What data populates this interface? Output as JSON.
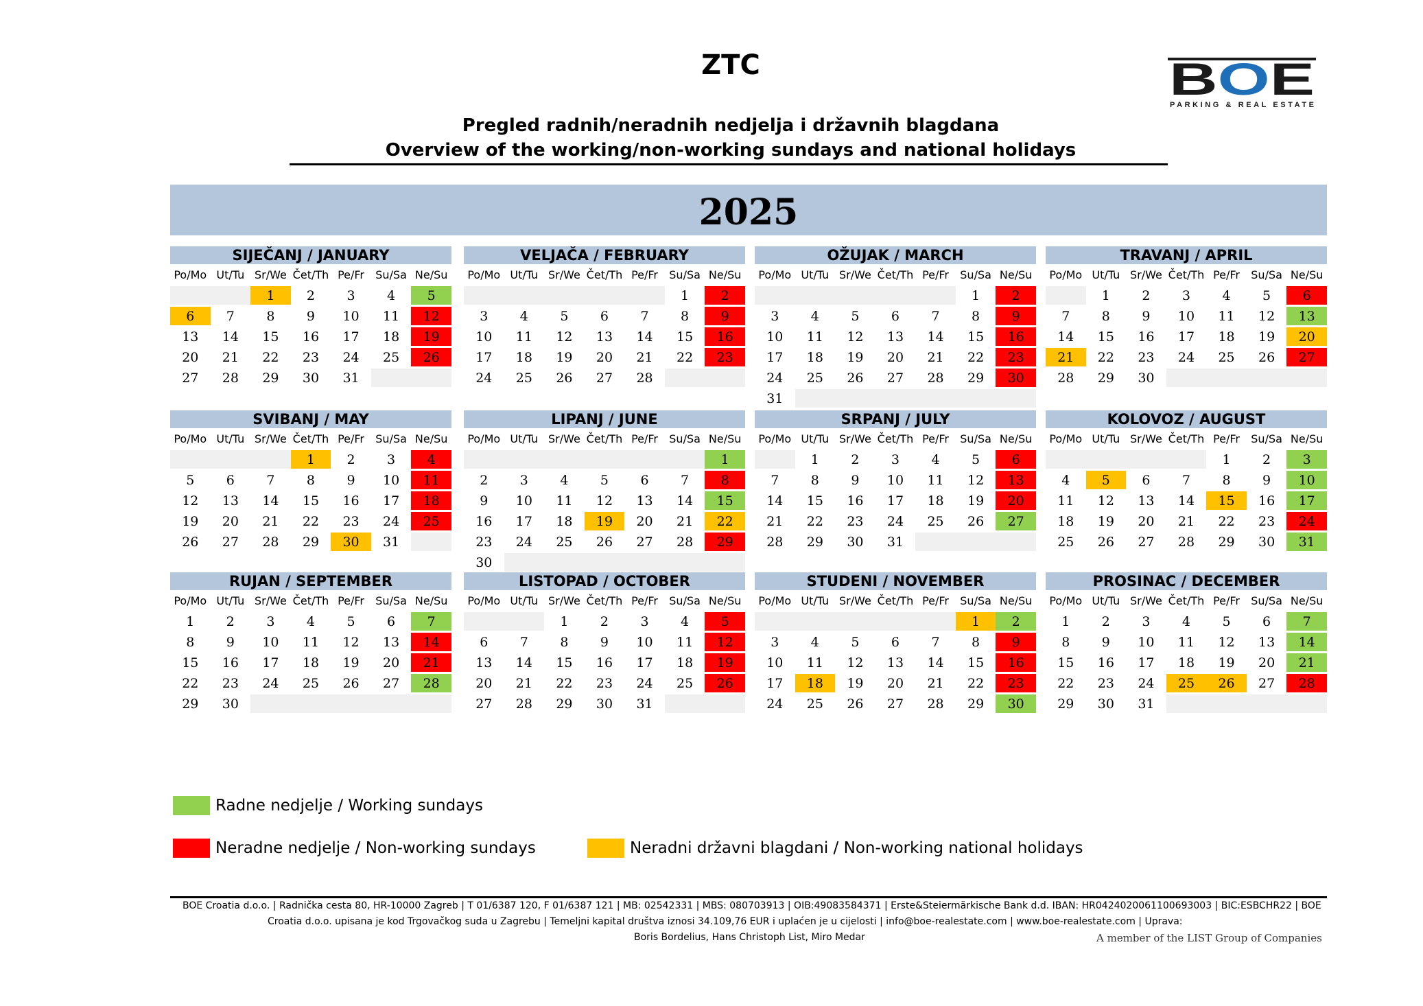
{
  "header": {
    "title": "ZTC",
    "subtitle_hr": "Pregled radnih/neradnih nedjelja i državnih blagdana",
    "subtitle_en": "Overview of the working/non-working sundays and national holidays",
    "year": "2025"
  },
  "logo": {
    "text": "BOE",
    "tagline": "PARKING & REAL ESTATE",
    "color_dark": "#1a1a1a",
    "color_blue": "#1f6fb8"
  },
  "colors": {
    "header_band": "#b4c6dc",
    "working_sunday": "#92d050",
    "non_working_sunday": "#ff0000",
    "holiday": "#ffc000",
    "empty_cell": "#f0f0f0"
  },
  "weekdays": [
    "Po/Mo",
    "Ut/Tu",
    "Sr/We",
    "Čet/Th",
    "Pe/Fr",
    "Su/Sa",
    "Ne/Su"
  ],
  "months": [
    {
      "name": "SIJEČANJ / JANUARY",
      "offset": 2,
      "days": 31,
      "g": [
        5
      ],
      "r": [
        12,
        19,
        26
      ],
      "y": [
        1,
        6
      ]
    },
    {
      "name": "VELJAČA / FEBRUARY",
      "offset": 5,
      "days": 28,
      "g": [],
      "r": [
        2,
        9,
        16,
        23
      ],
      "y": []
    },
    {
      "name": "OŽUJAK / MARCH",
      "offset": 5,
      "days": 31,
      "g": [],
      "r": [
        2,
        9,
        16,
        23,
        30
      ],
      "y": []
    },
    {
      "name": "TRAVANJ / APRIL",
      "offset": 1,
      "days": 30,
      "g": [
        13
      ],
      "r": [
        6,
        27
      ],
      "y": [
        20,
        21
      ]
    },
    {
      "name": "SVIBANJ / MAY",
      "offset": 3,
      "days": 31,
      "g": [],
      "r": [
        4,
        11,
        18,
        25
      ],
      "y": [
        1,
        30
      ]
    },
    {
      "name": "LIPANJ / JUNE",
      "offset": 6,
      "days": 30,
      "g": [
        1,
        15
      ],
      "r": [
        8,
        29
      ],
      "y": [
        19,
        22
      ]
    },
    {
      "name": "SRPANJ / JULY",
      "offset": 1,
      "days": 31,
      "g": [
        27
      ],
      "r": [
        6,
        13,
        20
      ],
      "y": []
    },
    {
      "name": "KOLOVOZ / AUGUST",
      "offset": 4,
      "days": 31,
      "g": [
        3,
        10,
        17,
        31
      ],
      "r": [
        24
      ],
      "y": [
        5,
        15
      ]
    },
    {
      "name": "RUJAN / SEPTEMBER",
      "offset": 0,
      "days": 30,
      "g": [
        7,
        28
      ],
      "r": [
        14,
        21
      ],
      "y": []
    },
    {
      "name": "LISTOPAD / OCTOBER",
      "offset": 2,
      "days": 31,
      "g": [],
      "r": [
        5,
        12,
        19,
        26
      ],
      "y": []
    },
    {
      "name": "STUDENI / NOVEMBER",
      "offset": 5,
      "days": 30,
      "g": [
        2,
        30
      ],
      "r": [
        9,
        16,
        23
      ],
      "y": [
        1,
        18
      ]
    },
    {
      "name": "PROSINAC / DECEMBER",
      "offset": 0,
      "days": 31,
      "g": [
        7,
        14,
        21
      ],
      "r": [
        28
      ],
      "y": [
        25,
        26
      ]
    }
  ],
  "legend": {
    "working": "Radne nedjelje / Working sundays",
    "non_working": "Neradne nedjelje / Non-working sundays",
    "holiday": "Neradni državni blagdani / Non-working national holidays"
  },
  "footer": {
    "line1": "BOE Croatia d.o.o. | Radnička cesta 80,  HR-10000 Zagreb  |  T 01/6387 120,  F 01/6387 121  |  MB: 02542331 | MBS:  080703913 |  OIB:49083584371  |  Erste&Steiermärkische Bank d.d.  IBAN: HR0424020061100693003  |  BIC:ESBCHR22  |  BOE",
    "line2": "Croatia d.o.o. upisana je kod Trgovačkog suda u Zagrebu | Temeljni kapital društva iznosi 34.109,76 EUR i uplaćen je u cijelosti |  info@boe-realestate.com |  www.boe-realestate.com |  Uprava:",
    "line3": "Boris Bordelius, Hans Christoph List, Miro Medar",
    "member": "A member of the LIST Group of Companies"
  }
}
